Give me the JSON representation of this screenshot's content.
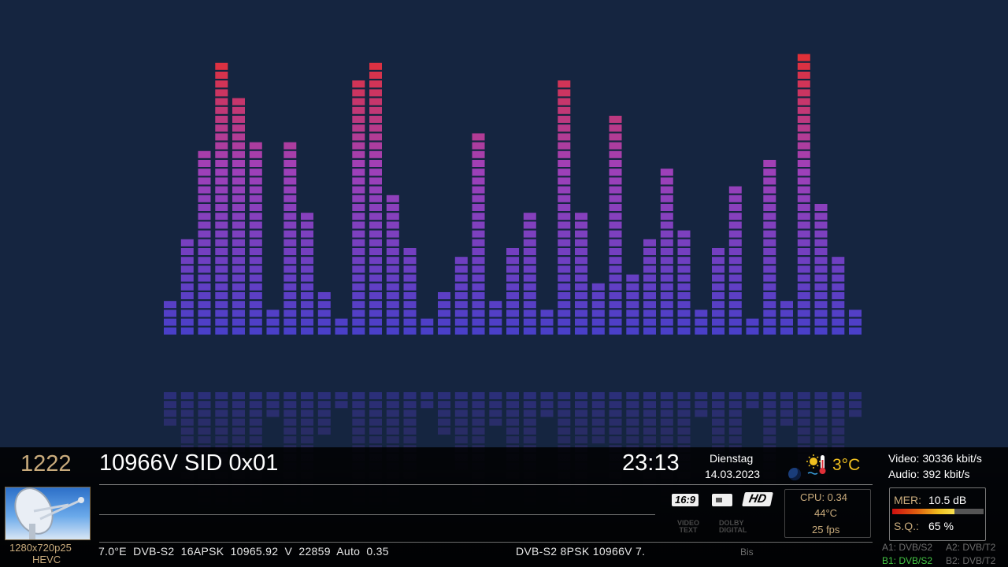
{
  "channel": {
    "number": "1222",
    "name": "10966V SID 0x01"
  },
  "clock": {
    "time": "23:13",
    "weekday": "Dienstag",
    "date": "14.03.2023"
  },
  "weather": {
    "temperature": "3°C",
    "icon": "sun-snow-thermometer-icon"
  },
  "bitrates": {
    "video": "Video: 30336 kbit/s",
    "audio": "Audio: 392 kbit/s"
  },
  "stream": {
    "resolution": "1280x720p25",
    "codec": "HEVC",
    "sat_info": "7.0°E DVB-S2 16APSK 10965.92 V 22859 Auto 0.35",
    "ticker": "DVB-S2 8PSK 10966V 7.",
    "next_label": "Bis"
  },
  "badges": {
    "aspect": "16:9",
    "hd": "HD",
    "videotext": "VIDEO TEXT",
    "dolby": "DOLBY DIGITAL"
  },
  "system": {
    "cpu": "CPU: 0.34",
    "temp": "44°C",
    "fps": "25 fps"
  },
  "signal": {
    "mer_label": "MER:",
    "mer_value": "10.5 dB",
    "mer_fill": 0.68,
    "sq_label": "S.Q.:",
    "sq_value": "65 %"
  },
  "tuners": {
    "a1": "A1: DVB/S2",
    "a2": "A2: DVB/T2",
    "b1": "B1: DVB/S2",
    "b2": "B2: DVB/T2",
    "active_color": "#44c744"
  },
  "visualizer": {
    "levels": [
      4,
      11,
      21,
      31,
      27,
      22,
      3,
      22,
      14,
      5,
      2,
      29,
      31,
      16,
      10,
      2,
      5,
      9,
      23,
      4,
      10,
      14,
      3,
      29,
      14,
      6,
      25,
      7,
      11,
      19,
      12,
      3,
      10,
      17,
      2,
      20,
      4,
      32,
      15,
      9,
      3
    ],
    "max_blocks": 32,
    "color_low": "#4a3fc8",
    "color_mid": "#a040b8",
    "color_high": "#e03038"
  }
}
